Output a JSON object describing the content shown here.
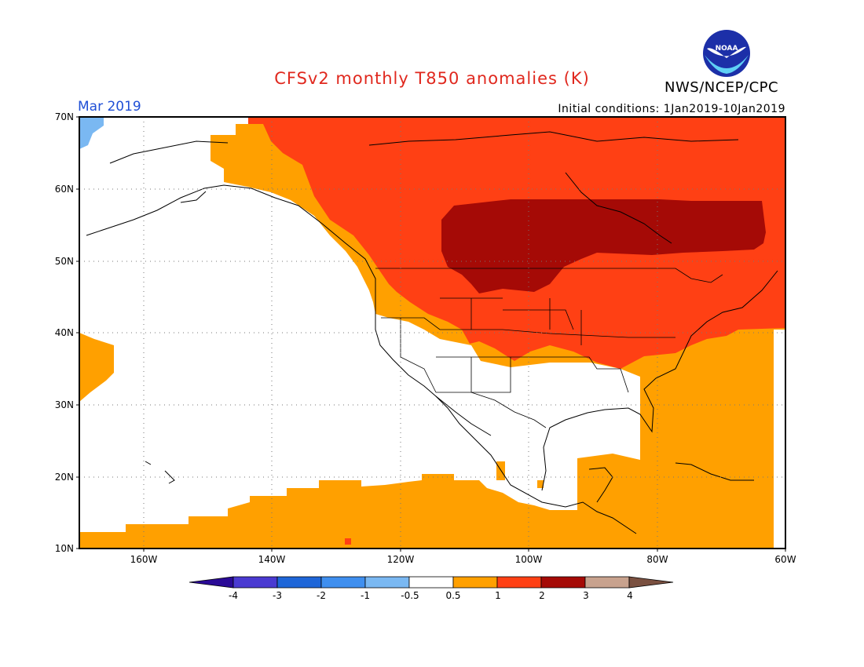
{
  "title": "CFSv2 monthly T850 anomalies (K)",
  "organization": "NWS/NCEP/CPC",
  "logo_text": "NOAA",
  "month_label": "Mar 2019",
  "init_conditions": "Initial conditions: 1Jan2019-10Jan2019",
  "lat_labels": [
    "70N",
    "60N",
    "50N",
    "40N",
    "30N",
    "20N",
    "10N"
  ],
  "lon_labels": [
    "160W",
    "140W",
    "120W",
    "100W",
    "80W",
    "60W"
  ],
  "colorbar": {
    "colors": [
      "#2a0a96",
      "#4a3ad1",
      "#1e66d8",
      "#3f8fef",
      "#7ab8f2",
      "#ffffff",
      "#ffa000",
      "#ff4014",
      "#a50a06",
      "#c8a28e",
      "#7a5040"
    ],
    "tick_labels": [
      "-4",
      "-3",
      "-2",
      "-1",
      "-0.5",
      "0.5",
      "1",
      "2",
      "3",
      "4"
    ]
  },
  "legend_colors": {
    "anom_0_5_to_1": "#ffa000",
    "anom_1_to_2": "#ff4014",
    "anom_2_to_3": "#a50a06",
    "anom_minus_1_to_minus_0_5": "#7ab8f2"
  }
}
